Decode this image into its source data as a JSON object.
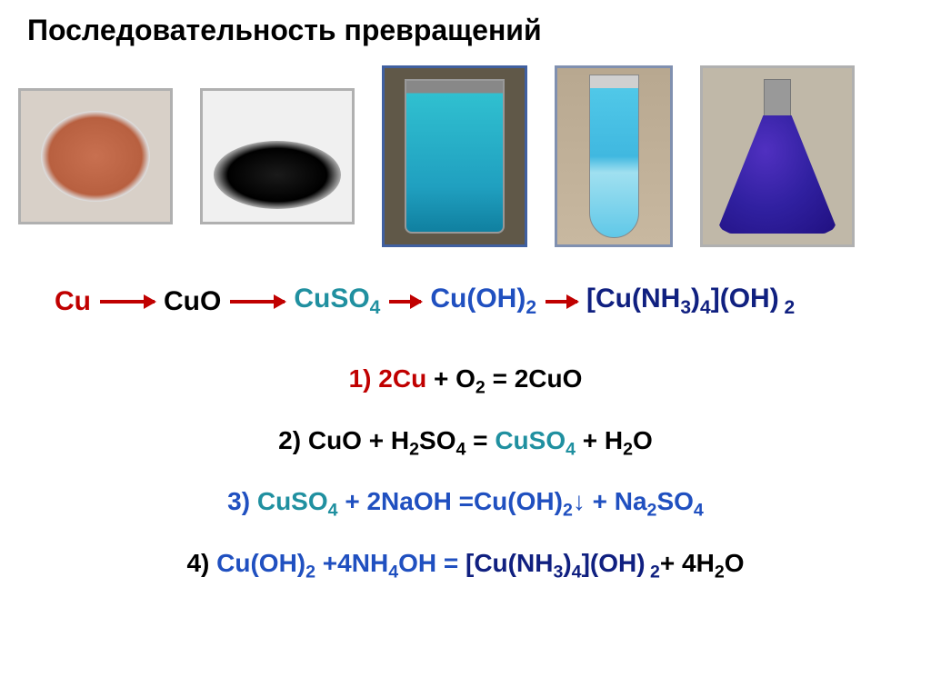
{
  "title": "Последовательность превращений",
  "colors": {
    "red": "#c00000",
    "black": "#000000",
    "teal": "#2090a0",
    "blue": "#2050c0",
    "darkblue": "#102080"
  },
  "chain": {
    "item1": {
      "text": "Cu",
      "color": "#c00000"
    },
    "item2": {
      "text": "CuO",
      "color": "#000000"
    },
    "item3_pre": "CuSO",
    "item3_sub": "4",
    "item3_color": "#2090a0",
    "item4_pre": "Cu(OH)",
    "item4_sub": "2",
    "item4_color": "#2050c0",
    "item5_a": "[Cu(NH",
    "item5_a_sub": "3",
    "item5_b": ")",
    "item5_b_sub": "4",
    "item5_c": "](OH)",
    "item5_c_sub": " 2",
    "item5_color": "#102080"
  },
  "equations": {
    "eq1": {
      "num": "1) ",
      "p1": "2Cu",
      "p2": " + O",
      "p2_sub": "2",
      "p3": " = 2",
      "p4": "CuO"
    },
    "eq2": {
      "num": "2) ",
      "p1": "CuO",
      "p2": " + H",
      "p2_sub": "2",
      "p3": "SO",
      "p3_sub": "4",
      "p4": " = ",
      "p5": "CuSO",
      "p5_sub": "4",
      "p6": " + H",
      "p6_sub": "2",
      "p7": "O"
    },
    "eq3": {
      "num": "3) ",
      "p1": "CuSO",
      "p1_sub": "4",
      "p2": " + 2NaOH =",
      "p3": "Cu(OH)",
      "p3_sub": "2",
      "p4": "↓",
      "p5": " + Na",
      "p5_sub": "2",
      "p6": "SO",
      "p6_sub": "4"
    },
    "eq4": {
      "num": "4) ",
      "p1": "Cu(OH)",
      "p1_sub": "2",
      "p2": " +4NH",
      "p2_sub": "4",
      "p3": "OH = ",
      "p4": "[Cu(NH",
      "p4_sub": "3",
      "p5": ")",
      "p5_sub": "4",
      "p6": "](OH)",
      "p6_sub": " 2",
      "p7": "+ 4H",
      "p7_sub": "2",
      "p8": "O"
    }
  }
}
